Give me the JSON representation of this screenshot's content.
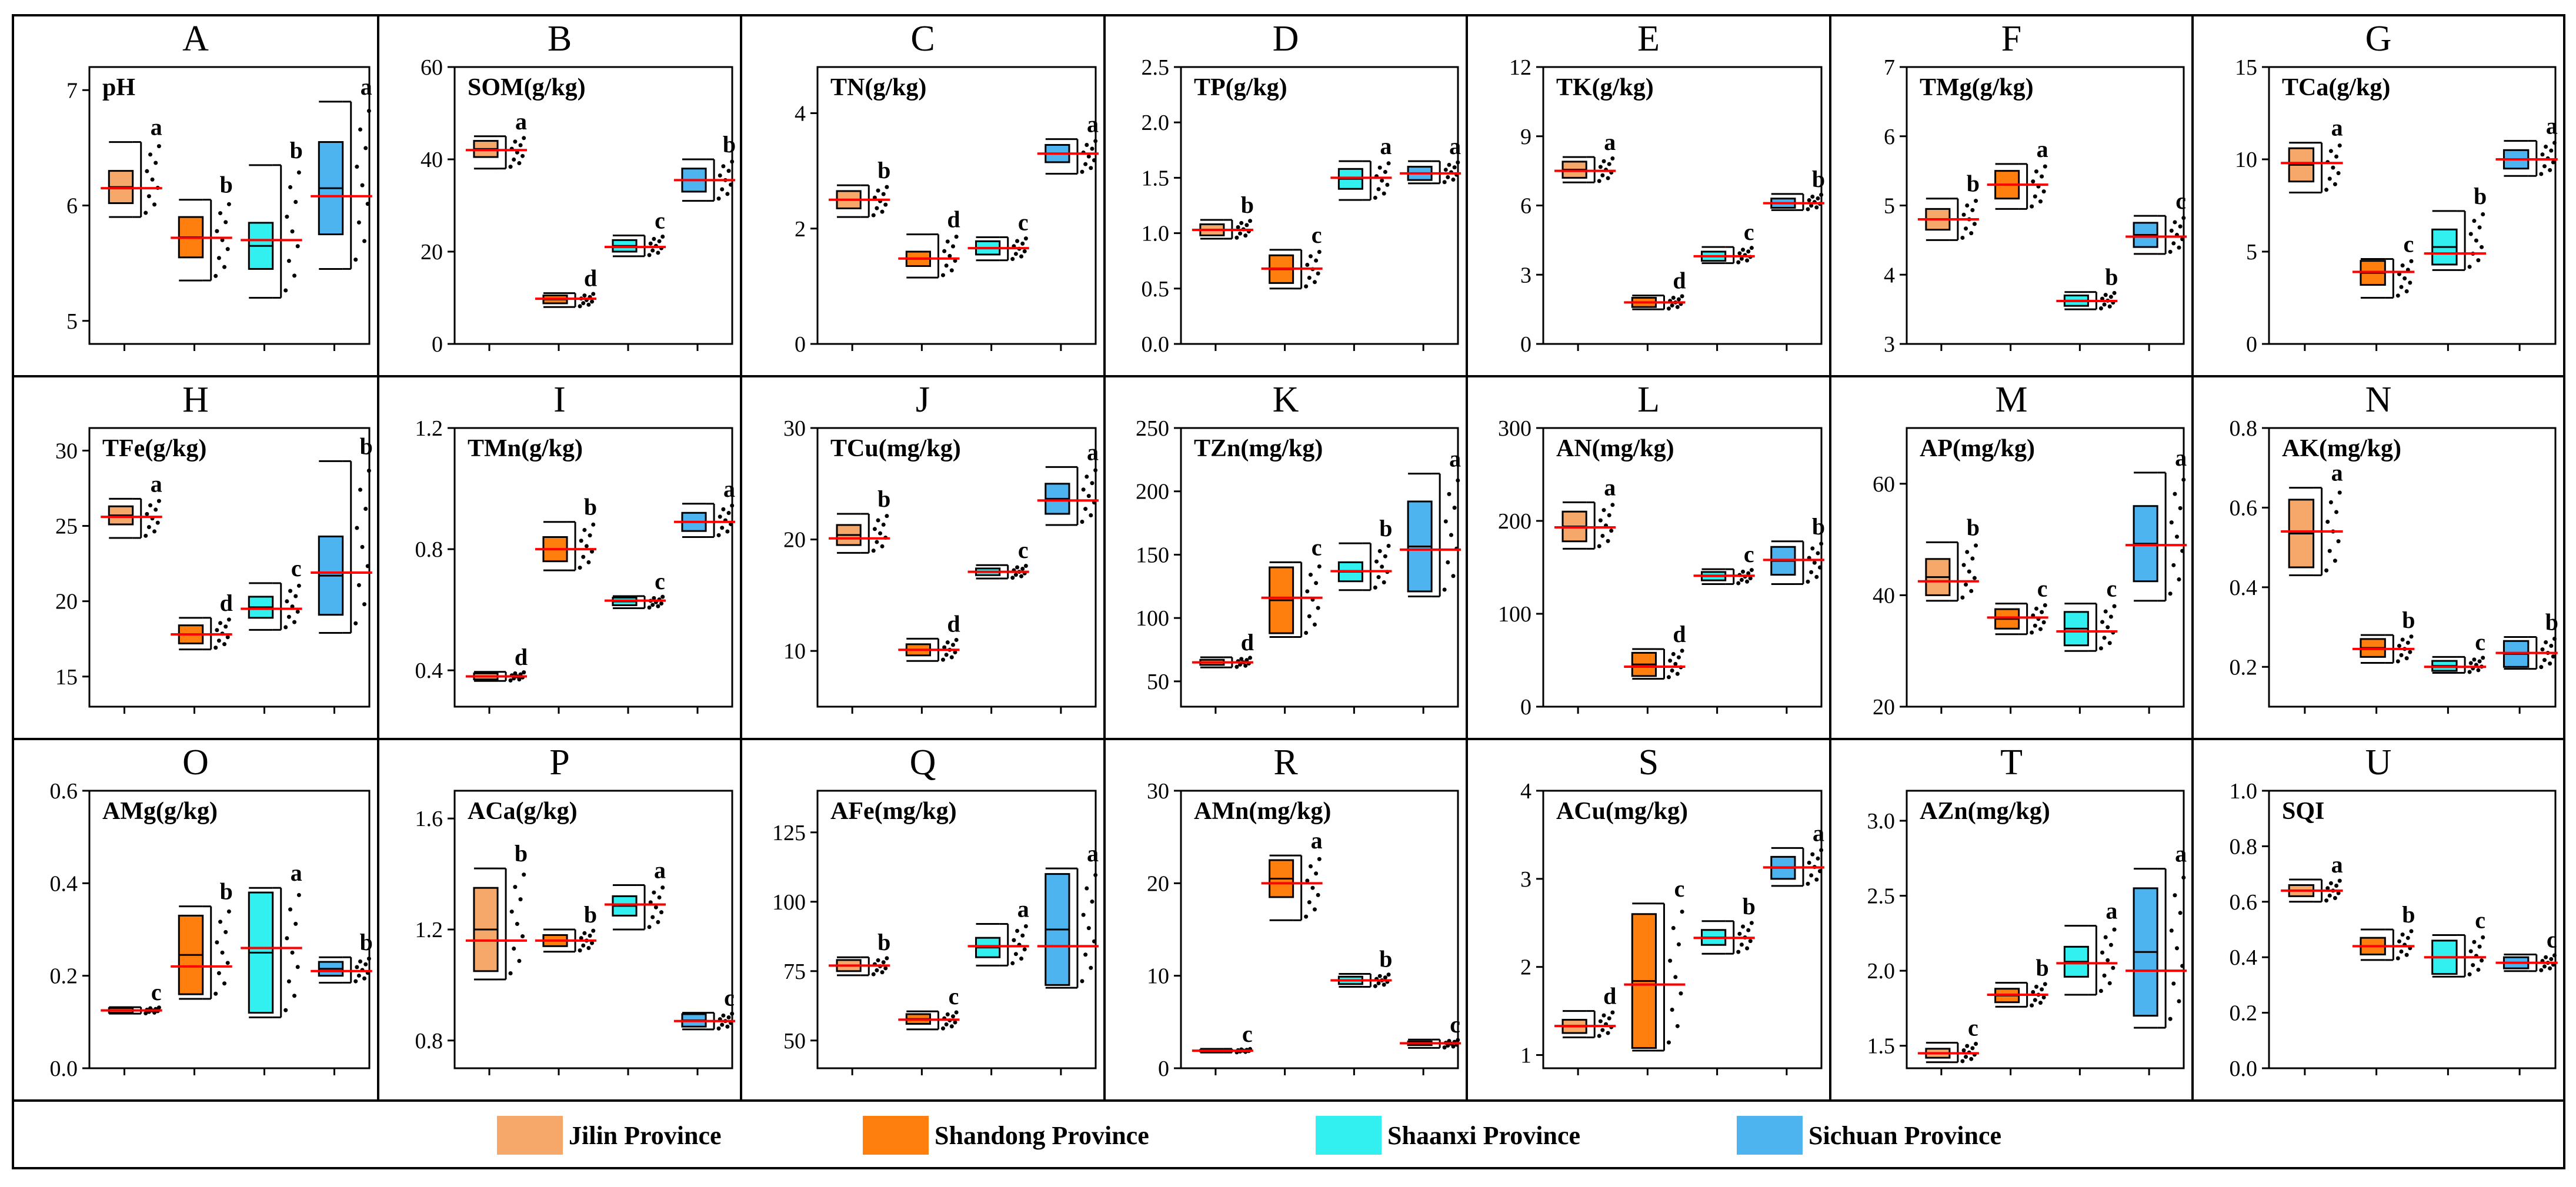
{
  "legend": [
    {
      "name": "Jilin Province",
      "color": "#F5A86A"
    },
    {
      "name": "Shandong Province",
      "color": "#FF7F0E"
    },
    {
      "name": "Shaanxi Province",
      "color": "#33F0F0"
    },
    {
      "name": "Sichuan Province",
      "color": "#4DB4F0"
    }
  ],
  "chart_data": [
    {
      "type": "box",
      "letter": "A",
      "title": "pH",
      "yticks": [
        "5",
        "6",
        "7"
      ],
      "ylim": [
        4.8,
        7.2
      ],
      "series": [
        {
          "q1": 6.02,
          "q3": 6.3,
          "min": 5.9,
          "max": 6.55,
          "mean": 6.15,
          "sig": "a"
        },
        {
          "q1": 5.55,
          "q3": 5.9,
          "min": 5.35,
          "max": 6.05,
          "mean": 5.72,
          "sig": "b"
        },
        {
          "q1": 5.45,
          "q3": 5.85,
          "min": 5.2,
          "max": 6.35,
          "mean": 5.7,
          "sig": "b"
        },
        {
          "q1": 5.75,
          "q3": 6.55,
          "min": 5.45,
          "max": 6.9,
          "mean": 6.08,
          "sig": "a"
        }
      ]
    },
    {
      "type": "box",
      "letter": "B",
      "title": "SOM(g/kg)",
      "yticks": [
        "0",
        "20",
        "40",
        "60"
      ],
      "ylim": [
        0,
        60
      ],
      "series": [
        {
          "q1": 40.5,
          "q3": 44,
          "min": 38,
          "max": 45,
          "mean": 42,
          "sig": "a"
        },
        {
          "q1": 8.8,
          "q3": 10.5,
          "min": 8,
          "max": 11,
          "mean": 9.8,
          "sig": "d"
        },
        {
          "q1": 20,
          "q3": 22.5,
          "min": 19,
          "max": 23.5,
          "mean": 21,
          "sig": "c"
        },
        {
          "q1": 33,
          "q3": 38,
          "min": 31,
          "max": 40,
          "mean": 35.5,
          "sig": "b"
        }
      ]
    },
    {
      "type": "box",
      "letter": "C",
      "title": "TN(g/kg)",
      "yticks": [
        "0",
        "2",
        "4"
      ],
      "ylim": [
        0,
        4.8
      ],
      "series": [
        {
          "q1": 2.35,
          "q3": 2.65,
          "min": 2.2,
          "max": 2.75,
          "mean": 2.5,
          "sig": "b"
        },
        {
          "q1": 1.35,
          "q3": 1.6,
          "min": 1.15,
          "max": 1.9,
          "mean": 1.48,
          "sig": "d"
        },
        {
          "q1": 1.55,
          "q3": 1.78,
          "min": 1.45,
          "max": 1.85,
          "mean": 1.66,
          "sig": "c"
        },
        {
          "q1": 3.15,
          "q3": 3.45,
          "min": 2.95,
          "max": 3.55,
          "mean": 3.3,
          "sig": "a"
        }
      ]
    },
    {
      "type": "box",
      "letter": "D",
      "title": "TP(g/kg)",
      "yticks": [
        "0.0",
        "0.5",
        "1.0",
        "1.5",
        "2.0",
        "2.5"
      ],
      "ylim": [
        0,
        2.5
      ],
      "series": [
        {
          "q1": 0.98,
          "q3": 1.08,
          "min": 0.95,
          "max": 1.12,
          "mean": 1.03,
          "sig": "b"
        },
        {
          "q1": 0.55,
          "q3": 0.8,
          "min": 0.5,
          "max": 0.85,
          "mean": 0.68,
          "sig": "c"
        },
        {
          "q1": 1.4,
          "q3": 1.58,
          "min": 1.3,
          "max": 1.65,
          "mean": 1.5,
          "sig": "a"
        },
        {
          "q1": 1.48,
          "q3": 1.6,
          "min": 1.45,
          "max": 1.65,
          "mean": 1.54,
          "sig": "a"
        }
      ]
    },
    {
      "type": "box",
      "letter": "E",
      "title": "TK(g/kg)",
      "yticks": [
        "0",
        "3",
        "6",
        "9",
        "12"
      ],
      "ylim": [
        0,
        12
      ],
      "series": [
        {
          "q1": 7.2,
          "q3": 7.9,
          "min": 7,
          "max": 8.1,
          "mean": 7.5,
          "sig": "a"
        },
        {
          "q1": 1.6,
          "q3": 2.0,
          "min": 1.5,
          "max": 2.1,
          "mean": 1.8,
          "sig": "d"
        },
        {
          "q1": 3.6,
          "q3": 4.0,
          "min": 3.5,
          "max": 4.2,
          "mean": 3.8,
          "sig": "c"
        },
        {
          "q1": 5.9,
          "q3": 6.3,
          "min": 5.8,
          "max": 6.5,
          "mean": 6.1,
          "sig": "b"
        }
      ]
    },
    {
      "type": "box",
      "letter": "F",
      "title": "TMg(g/kg)",
      "yticks": [
        "3",
        "4",
        "5",
        "6",
        "7"
      ],
      "ylim": [
        3,
        7
      ],
      "series": [
        {
          "q1": 4.65,
          "q3": 4.95,
          "min": 4.5,
          "max": 5.1,
          "mean": 4.8,
          "sig": "b"
        },
        {
          "q1": 5.1,
          "q3": 5.5,
          "min": 4.95,
          "max": 5.6,
          "mean": 5.3,
          "sig": "a"
        },
        {
          "q1": 3.55,
          "q3": 3.7,
          "min": 3.5,
          "max": 3.75,
          "mean": 3.62,
          "sig": "b"
        },
        {
          "q1": 4.4,
          "q3": 4.75,
          "min": 4.3,
          "max": 4.85,
          "mean": 4.55,
          "sig": "c"
        }
      ]
    },
    {
      "type": "box",
      "letter": "G",
      "title": "TCa(g/kg)",
      "yticks": [
        "0",
        "5",
        "10",
        "15"
      ],
      "ylim": [
        0,
        15
      ],
      "series": [
        {
          "q1": 8.8,
          "q3": 10.6,
          "min": 8.2,
          "max": 10.9,
          "mean": 9.8,
          "sig": "a"
        },
        {
          "q1": 3.2,
          "q3": 4.5,
          "min": 2.5,
          "max": 4.6,
          "mean": 3.9,
          "sig": "c"
        },
        {
          "q1": 4.3,
          "q3": 6.2,
          "min": 4,
          "max": 7.2,
          "mean": 4.9,
          "sig": "b"
        },
        {
          "q1": 9.5,
          "q3": 10.5,
          "min": 9.1,
          "max": 11,
          "mean": 10,
          "sig": "a"
        }
      ]
    },
    {
      "type": "box",
      "letter": "H",
      "title": "TFe(g/kg)",
      "yticks": [
        "15",
        "20",
        "25",
        "30"
      ],
      "ylim": [
        13,
        31.5
      ],
      "series": [
        {
          "q1": 25.1,
          "q3": 26.3,
          "min": 24.2,
          "max": 26.8,
          "mean": 25.6,
          "sig": "a"
        },
        {
          "q1": 17.2,
          "q3": 18.4,
          "min": 16.8,
          "max": 18.9,
          "mean": 17.8,
          "sig": "d"
        },
        {
          "q1": 18.9,
          "q3": 20.3,
          "min": 18.1,
          "max": 21.2,
          "mean": 19.5,
          "sig": "c"
        },
        {
          "q1": 19.1,
          "q3": 24.3,
          "min": 17.9,
          "max": 29.3,
          "mean": 21.9,
          "sig": "b"
        }
      ]
    },
    {
      "type": "box",
      "letter": "I",
      "title": "TMn(g/kg)",
      "yticks": [
        "0.4",
        "0.8",
        "1.2"
      ],
      "ylim": [
        0.28,
        1.2
      ],
      "series": [
        {
          "q1": 0.37,
          "q3": 0.39,
          "min": 0.365,
          "max": 0.395,
          "mean": 0.38,
          "sig": "d"
        },
        {
          "q1": 0.76,
          "q3": 0.84,
          "min": 0.73,
          "max": 0.89,
          "mean": 0.8,
          "sig": "b"
        },
        {
          "q1": 0.615,
          "q3": 0.64,
          "min": 0.605,
          "max": 0.645,
          "mean": 0.63,
          "sig": "c"
        },
        {
          "q1": 0.86,
          "q3": 0.92,
          "min": 0.84,
          "max": 0.95,
          "mean": 0.89,
          "sig": "a"
        }
      ]
    },
    {
      "type": "box",
      "letter": "J",
      "title": "TCu(mg/kg)",
      "yticks": [
        "10",
        "20",
        "30"
      ],
      "ylim": [
        5,
        30
      ],
      "series": [
        {
          "q1": 19.5,
          "q3": 21.3,
          "min": 18.8,
          "max": 22.3,
          "mean": 20.1,
          "sig": "b"
        },
        {
          "q1": 9.6,
          "q3": 10.6,
          "min": 9.1,
          "max": 11.1,
          "mean": 10.1,
          "sig": "d"
        },
        {
          "q1": 16.8,
          "q3": 17.4,
          "min": 16.5,
          "max": 17.7,
          "mean": 17.1,
          "sig": "c"
        },
        {
          "q1": 22.3,
          "q3": 25,
          "min": 21.3,
          "max": 26.5,
          "mean": 23.5,
          "sig": "a"
        }
      ]
    },
    {
      "type": "box",
      "letter": "K",
      "title": "TZn(mg/kg)",
      "yticks": [
        "50",
        "100",
        "150",
        "200",
        "250"
      ],
      "ylim": [
        30,
        250
      ],
      "series": [
        {
          "q1": 63,
          "q3": 67,
          "min": 61,
          "max": 69,
          "mean": 65,
          "sig": "d"
        },
        {
          "q1": 88,
          "q3": 140,
          "min": 85,
          "max": 144,
          "mean": 116,
          "sig": "c"
        },
        {
          "q1": 129,
          "q3": 144,
          "min": 122,
          "max": 159,
          "mean": 137,
          "sig": "b"
        },
        {
          "q1": 121,
          "q3": 192,
          "min": 117,
          "max": 214,
          "mean": 154,
          "sig": "a"
        }
      ]
    },
    {
      "type": "box",
      "letter": "L",
      "title": "AN(mg/kg)",
      "yticks": [
        "0",
        "100",
        "200",
        "300"
      ],
      "ylim": [
        0,
        300
      ],
      "series": [
        {
          "q1": 178,
          "q3": 210,
          "min": 170,
          "max": 220,
          "mean": 193,
          "sig": "a"
        },
        {
          "q1": 33,
          "q3": 58,
          "min": 30,
          "max": 62,
          "mean": 43,
          "sig": "d"
        },
        {
          "q1": 136,
          "q3": 145,
          "min": 132,
          "max": 148,
          "mean": 141,
          "sig": "c"
        },
        {
          "q1": 142,
          "q3": 172,
          "min": 132,
          "max": 178,
          "mean": 158,
          "sig": "b"
        }
      ]
    },
    {
      "type": "box",
      "letter": "M",
      "title": "AP(mg/kg)",
      "yticks": [
        "20",
        "40",
        "60"
      ],
      "ylim": [
        20,
        70
      ],
      "series": [
        {
          "q1": 40,
          "q3": 46.5,
          "min": 39,
          "max": 49.5,
          "mean": 42.5,
          "sig": "b"
        },
        {
          "q1": 34,
          "q3": 37.5,
          "min": 33,
          "max": 38.5,
          "mean": 36,
          "sig": "c"
        },
        {
          "q1": 31,
          "q3": 37,
          "min": 30,
          "max": 38.5,
          "mean": 33.5,
          "sig": "c"
        },
        {
          "q1": 42.5,
          "q3": 56,
          "min": 39,
          "max": 62,
          "mean": 49,
          "sig": "a"
        }
      ]
    },
    {
      "type": "box",
      "letter": "N",
      "title": "AK(mg/kg)",
      "yticks": [
        "0.2",
        "0.4",
        "0.6",
        "0.8"
      ],
      "ylim": [
        0.1,
        0.8
      ],
      "series": [
        {
          "q1": 0.45,
          "q3": 0.62,
          "min": 0.43,
          "max": 0.65,
          "mean": 0.54,
          "sig": "a"
        },
        {
          "q1": 0.225,
          "q3": 0.27,
          "min": 0.21,
          "max": 0.28,
          "mean": 0.245,
          "sig": "b"
        },
        {
          "q1": 0.19,
          "q3": 0.215,
          "min": 0.185,
          "max": 0.225,
          "mean": 0.2,
          "sig": "c"
        },
        {
          "q1": 0.2,
          "q3": 0.265,
          "min": 0.195,
          "max": 0.275,
          "mean": 0.235,
          "sig": "b"
        }
      ]
    },
    {
      "type": "box",
      "letter": "O",
      "title": "AMg(g/kg)",
      "yticks": [
        "0.0",
        "0.2",
        "0.4",
        "0.6"
      ],
      "ylim": [
        0,
        0.6
      ],
      "series": [
        {
          "q1": 0.12,
          "q3": 0.13,
          "min": 0.118,
          "max": 0.132,
          "mean": 0.125,
          "sig": "c"
        },
        {
          "q1": 0.16,
          "q3": 0.33,
          "min": 0.15,
          "max": 0.35,
          "mean": 0.22,
          "sig": "b"
        },
        {
          "q1": 0.12,
          "q3": 0.38,
          "min": 0.11,
          "max": 0.39,
          "mean": 0.26,
          "sig": "a"
        },
        {
          "q1": 0.2,
          "q3": 0.23,
          "min": 0.185,
          "max": 0.24,
          "mean": 0.21,
          "sig": "b"
        }
      ]
    },
    {
      "type": "box",
      "letter": "P",
      "title": "ACa(g/kg)",
      "yticks": [
        "0.8",
        "1.2",
        "1.6"
      ],
      "ylim": [
        0.7,
        1.7
      ],
      "series": [
        {
          "q1": 1.05,
          "q3": 1.35,
          "min": 1.02,
          "max": 1.42,
          "mean": 1.16,
          "sig": "b"
        },
        {
          "q1": 1.14,
          "q3": 1.18,
          "min": 1.12,
          "max": 1.2,
          "mean": 1.16,
          "sig": "b"
        },
        {
          "q1": 1.25,
          "q3": 1.32,
          "min": 1.2,
          "max": 1.36,
          "mean": 1.29,
          "sig": "a"
        },
        {
          "q1": 0.85,
          "q3": 0.895,
          "min": 0.84,
          "max": 0.9,
          "mean": 0.87,
          "sig": "c"
        }
      ]
    },
    {
      "type": "box",
      "letter": "Q",
      "title": "AFe(mg/kg)",
      "yticks": [
        "50",
        "75",
        "100",
        "125"
      ],
      "ylim": [
        40,
        140
      ],
      "series": [
        {
          "q1": 75,
          "q3": 79,
          "min": 73.5,
          "max": 80,
          "mean": 77,
          "sig": "b"
        },
        {
          "q1": 56,
          "q3": 59.5,
          "min": 54,
          "max": 60.5,
          "mean": 57.5,
          "sig": "c"
        },
        {
          "q1": 80,
          "q3": 87,
          "min": 77,
          "max": 92,
          "mean": 84,
          "sig": "a"
        },
        {
          "q1": 70,
          "q3": 110,
          "min": 69,
          "max": 112,
          "mean": 84,
          "sig": "a"
        }
      ]
    },
    {
      "type": "box",
      "letter": "R",
      "title": "AMn(mg/kg)",
      "yticks": [
        "0",
        "10",
        "20",
        "30"
      ],
      "ylim": [
        0,
        30
      ],
      "series": [
        {
          "q1": 1.8,
          "q3": 2.0,
          "min": 1.7,
          "max": 2.1,
          "mean": 1.9,
          "sig": "c"
        },
        {
          "q1": 18.5,
          "q3": 22.5,
          "min": 16,
          "max": 23,
          "mean": 20,
          "sig": "a"
        },
        {
          "q1": 9.1,
          "q3": 9.9,
          "min": 8.8,
          "max": 10.2,
          "mean": 9.5,
          "sig": "b"
        },
        {
          "q1": 2.5,
          "q3": 2.9,
          "min": 2.2,
          "max": 3.1,
          "mean": 2.7,
          "sig": "c"
        }
      ]
    },
    {
      "type": "box",
      "letter": "S",
      "title": "ACu(mg/kg)",
      "yticks": [
        "1",
        "2",
        "3",
        "4"
      ],
      "ylim": [
        0.85,
        4
      ],
      "series": [
        {
          "q1": 1.25,
          "q3": 1.4,
          "min": 1.2,
          "max": 1.5,
          "mean": 1.33,
          "sig": "d"
        },
        {
          "q1": 1.08,
          "q3": 2.6,
          "min": 1.05,
          "max": 2.72,
          "mean": 1.8,
          "sig": "c"
        },
        {
          "q1": 2.25,
          "q3": 2.42,
          "min": 2.15,
          "max": 2.52,
          "mean": 2.33,
          "sig": "b"
        },
        {
          "q1": 3.0,
          "q3": 3.25,
          "min": 2.92,
          "max": 3.35,
          "mean": 3.13,
          "sig": "a"
        }
      ]
    },
    {
      "type": "box",
      "letter": "T",
      "title": "AZn(mg/kg)",
      "yticks": [
        "1.5",
        "2.0",
        "2.5",
        "3.0"
      ],
      "ylim": [
        1.35,
        3.2
      ],
      "series": [
        {
          "q1": 1.42,
          "q3": 1.48,
          "min": 1.39,
          "max": 1.52,
          "mean": 1.45,
          "sig": "c"
        },
        {
          "q1": 1.79,
          "q3": 1.88,
          "min": 1.76,
          "max": 1.92,
          "mean": 1.84,
          "sig": "b"
        },
        {
          "q1": 1.96,
          "q3": 2.16,
          "min": 1.84,
          "max": 2.3,
          "mean": 2.05,
          "sig": "a"
        },
        {
          "q1": 1.7,
          "q3": 2.55,
          "min": 1.62,
          "max": 2.68,
          "mean": 2.0,
          "sig": "a"
        }
      ]
    },
    {
      "type": "box",
      "letter": "U",
      "title": "SQI",
      "yticks": [
        "0.0",
        "0.2",
        "0.4",
        "0.6",
        "0.8",
        "1.0"
      ],
      "ylim": [
        0,
        1
      ],
      "series": [
        {
          "q1": 0.62,
          "q3": 0.66,
          "min": 0.6,
          "max": 0.68,
          "mean": 0.64,
          "sig": "a"
        },
        {
          "q1": 0.41,
          "q3": 0.47,
          "min": 0.39,
          "max": 0.5,
          "mean": 0.44,
          "sig": "b"
        },
        {
          "q1": 0.34,
          "q3": 0.46,
          "min": 0.33,
          "max": 0.48,
          "mean": 0.4,
          "sig": "c"
        },
        {
          "q1": 0.36,
          "q3": 0.4,
          "min": 0.35,
          "max": 0.41,
          "mean": 0.38,
          "sig": "c"
        }
      ]
    }
  ]
}
